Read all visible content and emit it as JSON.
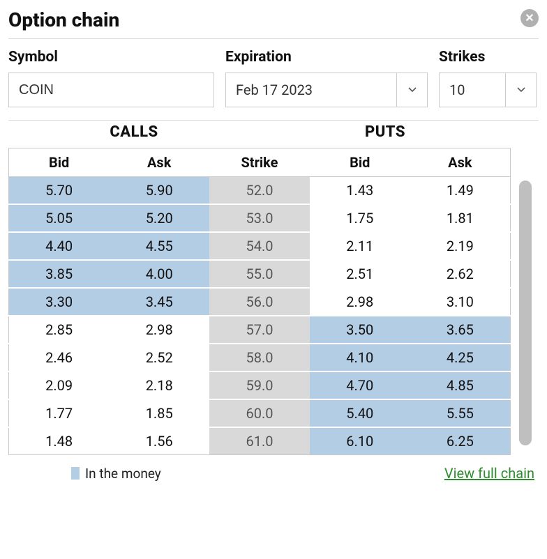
{
  "title": "Option chain",
  "close_icon": "✕",
  "filters": {
    "symbol": {
      "label": "Symbol",
      "value": "COIN"
    },
    "expiration": {
      "label": "Expiration",
      "value": "Feb 17 2023"
    },
    "strikes": {
      "label": "Strikes",
      "value": "10"
    }
  },
  "groups": {
    "calls": "CALLS",
    "puts": "PUTS"
  },
  "columns": {
    "bid": "Bid",
    "ask": "Ask",
    "strike": "Strike"
  },
  "rows": [
    {
      "call_bid": "5.70",
      "call_ask": "5.90",
      "strike": "52.0",
      "put_bid": "1.43",
      "put_ask": "1.49",
      "call_itm": true,
      "put_itm": false
    },
    {
      "call_bid": "5.05",
      "call_ask": "5.20",
      "strike": "53.0",
      "put_bid": "1.75",
      "put_ask": "1.81",
      "call_itm": true,
      "put_itm": false
    },
    {
      "call_bid": "4.40",
      "call_ask": "4.55",
      "strike": "54.0",
      "put_bid": "2.11",
      "put_ask": "2.19",
      "call_itm": true,
      "put_itm": false
    },
    {
      "call_bid": "3.85",
      "call_ask": "4.00",
      "strike": "55.0",
      "put_bid": "2.51",
      "put_ask": "2.62",
      "call_itm": true,
      "put_itm": false
    },
    {
      "call_bid": "3.30",
      "call_ask": "3.45",
      "strike": "56.0",
      "put_bid": "2.98",
      "put_ask": "3.10",
      "call_itm": true,
      "put_itm": false
    },
    {
      "call_bid": "2.85",
      "call_ask": "2.98",
      "strike": "57.0",
      "put_bid": "3.50",
      "put_ask": "3.65",
      "call_itm": false,
      "put_itm": true
    },
    {
      "call_bid": "2.46",
      "call_ask": "2.52",
      "strike": "58.0",
      "put_bid": "4.10",
      "put_ask": "4.25",
      "call_itm": false,
      "put_itm": true
    },
    {
      "call_bid": "2.09",
      "call_ask": "2.18",
      "strike": "59.0",
      "put_bid": "4.70",
      "put_ask": "4.85",
      "call_itm": false,
      "put_itm": true
    },
    {
      "call_bid": "1.77",
      "call_ask": "1.85",
      "strike": "60.0",
      "put_bid": "5.40",
      "put_ask": "5.55",
      "call_itm": false,
      "put_itm": true
    },
    {
      "call_bid": "1.48",
      "call_ask": "1.56",
      "strike": "61.0",
      "put_bid": "6.10",
      "put_ask": "6.25",
      "call_itm": false,
      "put_itm": true
    }
  ],
  "legend": {
    "label": "In the money"
  },
  "link": {
    "label": "View full chain"
  },
  "colors": {
    "itm_bg": "#b3cde5",
    "strike_bg": "#d9d9d9",
    "strike_fg": "#555555",
    "border": "#c8c8c8",
    "link": "#2e8b2e",
    "scroll_thumb": "#bfbfbf",
    "close_bg": "#b0b0b0"
  }
}
